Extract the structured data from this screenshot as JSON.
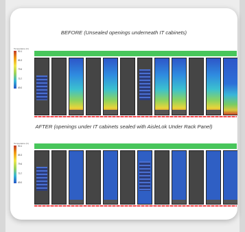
{
  "before": {
    "title": "BEFORE (Unsealed openings underneath IT cabinets)",
    "legend_title": "Temperature (C)",
    "legend_ticks": [
      "90.1",
      "85.3",
      "79.6",
      "73.7",
      "69.0"
    ],
    "cabinets": [
      "dark",
      "dark",
      "thermal",
      "dark",
      "thermal",
      "dark",
      "banded",
      "thermal",
      "thermal",
      "dark",
      "thermal",
      "thermal-b"
    ]
  },
  "after": {
    "title": "AFTER (openings under IT cabinets sealed with AisleLok Under Rack Panel)",
    "legend_title": "Temperature (C)",
    "legend_ticks": [
      "90.1",
      "85.3",
      "79.6",
      "73.7",
      "69.0"
    ],
    "cabinets": [
      "dark",
      "dark",
      "blue",
      "dark",
      "blue",
      "dark",
      "banded-blue",
      "dark",
      "blue",
      "dark",
      "blue",
      "blue"
    ]
  }
}
